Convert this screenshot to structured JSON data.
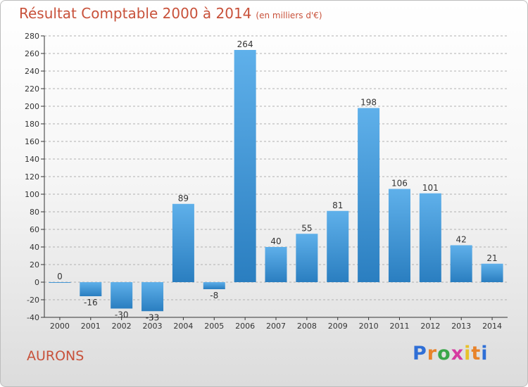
{
  "page": {
    "title": "Résultat Comptable 2000 à 2014",
    "subtitle": "(en milliers d'€)",
    "commune": "AURONS",
    "brand": "Proxiti"
  },
  "colors": {
    "title": "#c8513a",
    "bar_light": "#5fb0ea",
    "bar_dark": "#2a7ec0",
    "axis": "#333333",
    "gridline": "#b0b0b0"
  },
  "chart_data": {
    "type": "bar",
    "categories": [
      "2000",
      "2001",
      "2002",
      "2003",
      "2004",
      "2005",
      "2006",
      "2007",
      "2008",
      "2009",
      "2010",
      "2011",
      "2012",
      "2013",
      "2014"
    ],
    "values": [
      0,
      -16,
      -30,
      -33,
      89,
      -8,
      264,
      40,
      55,
      81,
      198,
      106,
      101,
      42,
      21
    ],
    "ylim": [
      -40,
      280
    ],
    "yticks": [
      -40,
      -20,
      0,
      20,
      40,
      60,
      80,
      100,
      120,
      140,
      160,
      180,
      200,
      220,
      240,
      260,
      280
    ],
    "grid": "horizontal dashed"
  }
}
